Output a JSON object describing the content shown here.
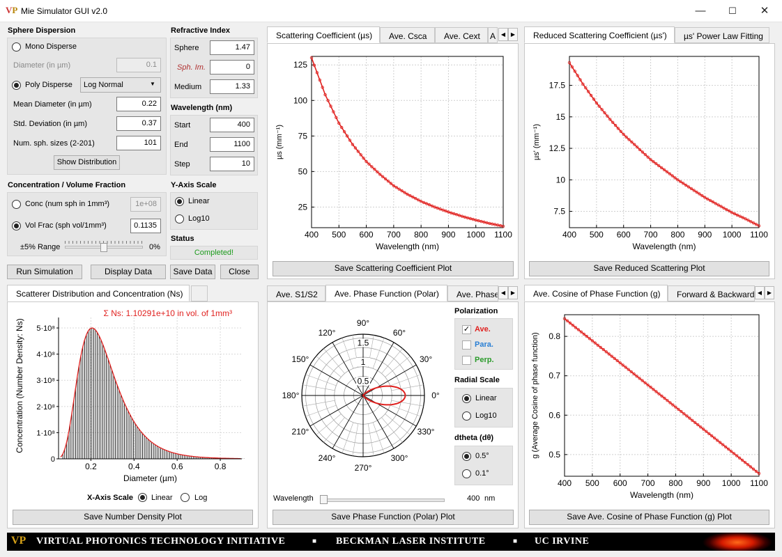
{
  "window": {
    "title": "Mie Simulator GUI v2.0",
    "min": "—",
    "max": "☐",
    "close": "✕"
  },
  "sphere_dispersion": {
    "title": "Sphere Dispersion",
    "mono": "Mono Disperse",
    "diameter_label": "Diameter (in µm)",
    "diameter_value": "0.1",
    "poly": "Poly Disperse",
    "distribution": "Log Normal",
    "mean_label": "Mean Diameter (in µm)",
    "mean_value": "0.22",
    "std_label": "Std. Deviation (in µm)",
    "std_value": "0.37",
    "num_label": "Num. sph. sizes (2-201)",
    "num_value": "101",
    "show_btn": "Show Distribution"
  },
  "refractive_index": {
    "title": "Refractive Index",
    "sphere_label": "Sphere",
    "sphere_value": "1.47",
    "sphim_label": "Sph. Im.",
    "sphim_value": "0",
    "medium_label": "Medium",
    "medium_value": "1.33"
  },
  "wavelength": {
    "title": "Wavelength (nm)",
    "start_label": "Start",
    "start_value": "400",
    "end_label": "End",
    "end_value": "1100",
    "step_label": "Step",
    "step_value": "10"
  },
  "concentration": {
    "title": "Concentration / Volume Fraction",
    "conc_label": "Conc (num sph in 1mm³)",
    "conc_value": "1e+08",
    "volfrac_label": "Vol Frac (sph vol/1mm³)",
    "volfrac_value": "0.1135",
    "range_label": "±5% Range",
    "range_value": "0%",
    "slider_fraction": 0.5
  },
  "yaxis": {
    "title": "Y-Axis Scale",
    "linear": "Linear",
    "log": "Log10"
  },
  "status": {
    "title": "Status",
    "text": "Completed!"
  },
  "buttons": {
    "run": "Run Simulation",
    "display": "Display Data",
    "save": "Save Data",
    "close": "Close"
  },
  "tabs_scatter": [
    "Scattering Coefficient (µs)",
    "Ave. Csca",
    "Ave. Cext",
    "A"
  ],
  "tabs_reduced": [
    "Reduced Scattering Coefficient (µs')",
    "µs' Power Law Fitting"
  ],
  "tabs_dist": [
    "Scatterer Distribution and Concentration (Ns)"
  ],
  "tabs_phase": [
    "Ave. S1/S2",
    "Ave. Phase Function (Polar)",
    "Ave. Phase"
  ],
  "tabs_g": [
    "Ave. Cosine of Phase Function (g)",
    "Forward & Backward"
  ],
  "save_buttons": {
    "mus": "Save Scattering Coefficient Plot",
    "musp": "Save Reduced Scattering Plot",
    "ns": "Save Number Density Plot",
    "polar": "Save Phase Function (Polar) Plot",
    "g": "Save Ave. Cosine of Phase Function (g) Plot"
  },
  "xaxis_scale": {
    "title": "X-Axis Scale",
    "linear": "Linear",
    "log": "Log"
  },
  "polarization": {
    "title": "Polarization",
    "ave": "Ave.",
    "para": "Para.",
    "perp": "Perp."
  },
  "radial_scale": {
    "title": "Radial Scale",
    "linear": "Linear",
    "log": "Log10"
  },
  "dtheta": {
    "title": "dtheta (dθ)",
    "a": "0.5°",
    "b": "0.1°"
  },
  "phase_wavelength": {
    "label": "Wavelength",
    "value": "400",
    "unit": "nm"
  },
  "colors": {
    "curve": "#e0211f",
    "accent_green": "#1c9b1c",
    "para_blue": "#2a7fd4",
    "perp_green": "#2a9b2a"
  },
  "footer": {
    "logo": "VP",
    "t1": "VIRTUAL PHOTONICS TECHNOLOGY INITIATIVE",
    "sep": "■",
    "t2": "BECKMAN LASER INSTITUTE",
    "t3": "UC IRVINE"
  },
  "chart_data": [
    {
      "type": "line",
      "xlabel": "Wavelength (nm)",
      "ylabel": "µs (mm⁻¹)",
      "xlim": [
        400,
        1100
      ],
      "ylim": [
        10.5,
        131
      ],
      "xticks": [
        400,
        500,
        600,
        700,
        800,
        900,
        1000,
        1100
      ],
      "yticks": [
        "25",
        "50",
        "75",
        "100",
        "125"
      ],
      "yticks_values": [
        25,
        50,
        75,
        100,
        125
      ],
      "x": [
        400,
        450,
        500,
        550,
        600,
        650,
        700,
        750,
        800,
        850,
        900,
        950,
        1000,
        1050,
        1100
      ],
      "y": [
        130,
        104,
        84,
        69,
        57,
        48,
        40,
        34,
        29,
        25,
        21.5,
        18.5,
        15.8,
        13.5,
        11.5
      ],
      "grid": true
    },
    {
      "type": "line",
      "xlabel": "Wavelength (nm)",
      "ylabel": "µs' (mm⁻¹)",
      "xlim": [
        400,
        1100
      ],
      "ylim": [
        6.2,
        19.8
      ],
      "xticks": [
        400,
        500,
        600,
        700,
        800,
        900,
        1000,
        1100
      ],
      "yticks": [
        "7.5",
        "10",
        "12.5",
        "15",
        "17.5"
      ],
      "yticks_values": [
        7.5,
        10,
        12.5,
        15,
        17.5
      ],
      "x": [
        400,
        450,
        500,
        550,
        600,
        650,
        700,
        750,
        800,
        850,
        900,
        950,
        1000,
        1050,
        1100
      ],
      "y": [
        19.3,
        17.6,
        16.1,
        14.8,
        13.6,
        12.6,
        11.6,
        10.8,
        10.0,
        9.3,
        8.6,
        8.0,
        7.4,
        6.9,
        6.35
      ],
      "grid": true
    },
    {
      "type": "bar",
      "title": "Σ Ns: 1.10291e+10 in vol. of 1mm³",
      "xlabel": "Diameter (µm)",
      "ylabel": "Concentration (Number Density: Ns)",
      "xlim": [
        0.05,
        0.9
      ],
      "ylim": [
        0,
        540000000.0
      ],
      "xticks": [
        0.2,
        0.4,
        0.6,
        0.8
      ],
      "xtick_labels": [
        "0.2",
        "0.4",
        "0.6",
        "0.8"
      ],
      "yticks": [
        0,
        100000000.0,
        200000000.0,
        300000000.0,
        400000000.0,
        500000000.0
      ],
      "ytick_labels": [
        "0",
        "1·10⁸",
        "2·10⁸",
        "3·10⁸",
        "4·10⁸",
        "5·10⁸"
      ],
      "distribution": {
        "kind": "lognormal",
        "mode_um": 0.2,
        "peak": 500000000.0,
        "bars": 101
      },
      "grid": true
    },
    {
      "type": "polar",
      "angle_labels": [
        "0°",
        "30°",
        "60°",
        "90°",
        "120°",
        "150°",
        "180°",
        "210°",
        "240°",
        "270°",
        "300°",
        "330°"
      ],
      "radial_labels": [
        "0.5",
        "1",
        "1.5"
      ],
      "rmax": 1.6,
      "lobe_peak": 1.1
    },
    {
      "type": "line",
      "xlabel": "Wavelength (nm)",
      "ylabel": "g (Average Cosine of phase function)",
      "xlim": [
        400,
        1100
      ],
      "ylim": [
        0.445,
        0.855
      ],
      "xticks": [
        400,
        500,
        600,
        700,
        800,
        900,
        1000,
        1100
      ],
      "yticks": [
        "0.5",
        "0.6",
        "0.7",
        "0.8"
      ],
      "yticks_values": [
        0.5,
        0.6,
        0.7,
        0.8
      ],
      "x": [
        400,
        1100
      ],
      "y": [
        0.845,
        0.452
      ],
      "grid": true
    }
  ]
}
